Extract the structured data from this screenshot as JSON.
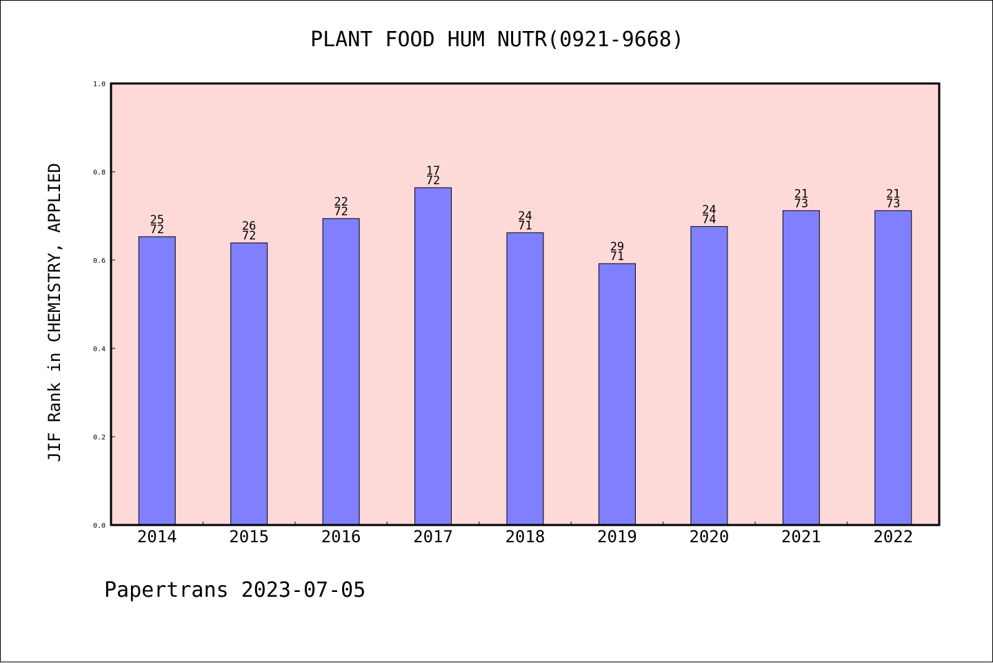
{
  "chart_data": {
    "type": "bar",
    "title": "PLANT FOOD HUM NUTR(0921-9668)",
    "ylabel": "JIF Rank in CHEMISTRY, APPLIED",
    "xlabel": "",
    "ylim": [
      0.0,
      1.0
    ],
    "yticks": [
      "0.0",
      "0.2",
      "0.4",
      "0.6",
      "0.8",
      "1.0"
    ],
    "categories": [
      "2014",
      "2015",
      "2016",
      "2017",
      "2018",
      "2019",
      "2020",
      "2021",
      "2022"
    ],
    "values": [
      0.653,
      0.639,
      0.694,
      0.764,
      0.662,
      0.592,
      0.676,
      0.712,
      0.712
    ],
    "rank": [
      "25",
      "26",
      "22",
      "17",
      "24",
      "29",
      "24",
      "21",
      "21"
    ],
    "total": [
      "72",
      "72",
      "72",
      "72",
      "71",
      "71",
      "74",
      "73",
      "73"
    ],
    "grid": false,
    "colors": {
      "plot_background": "#fddad8",
      "bar_fill": "#8080ff",
      "bar_stroke": "#000000"
    }
  },
  "footer": "Papertrans 2023-07-05"
}
